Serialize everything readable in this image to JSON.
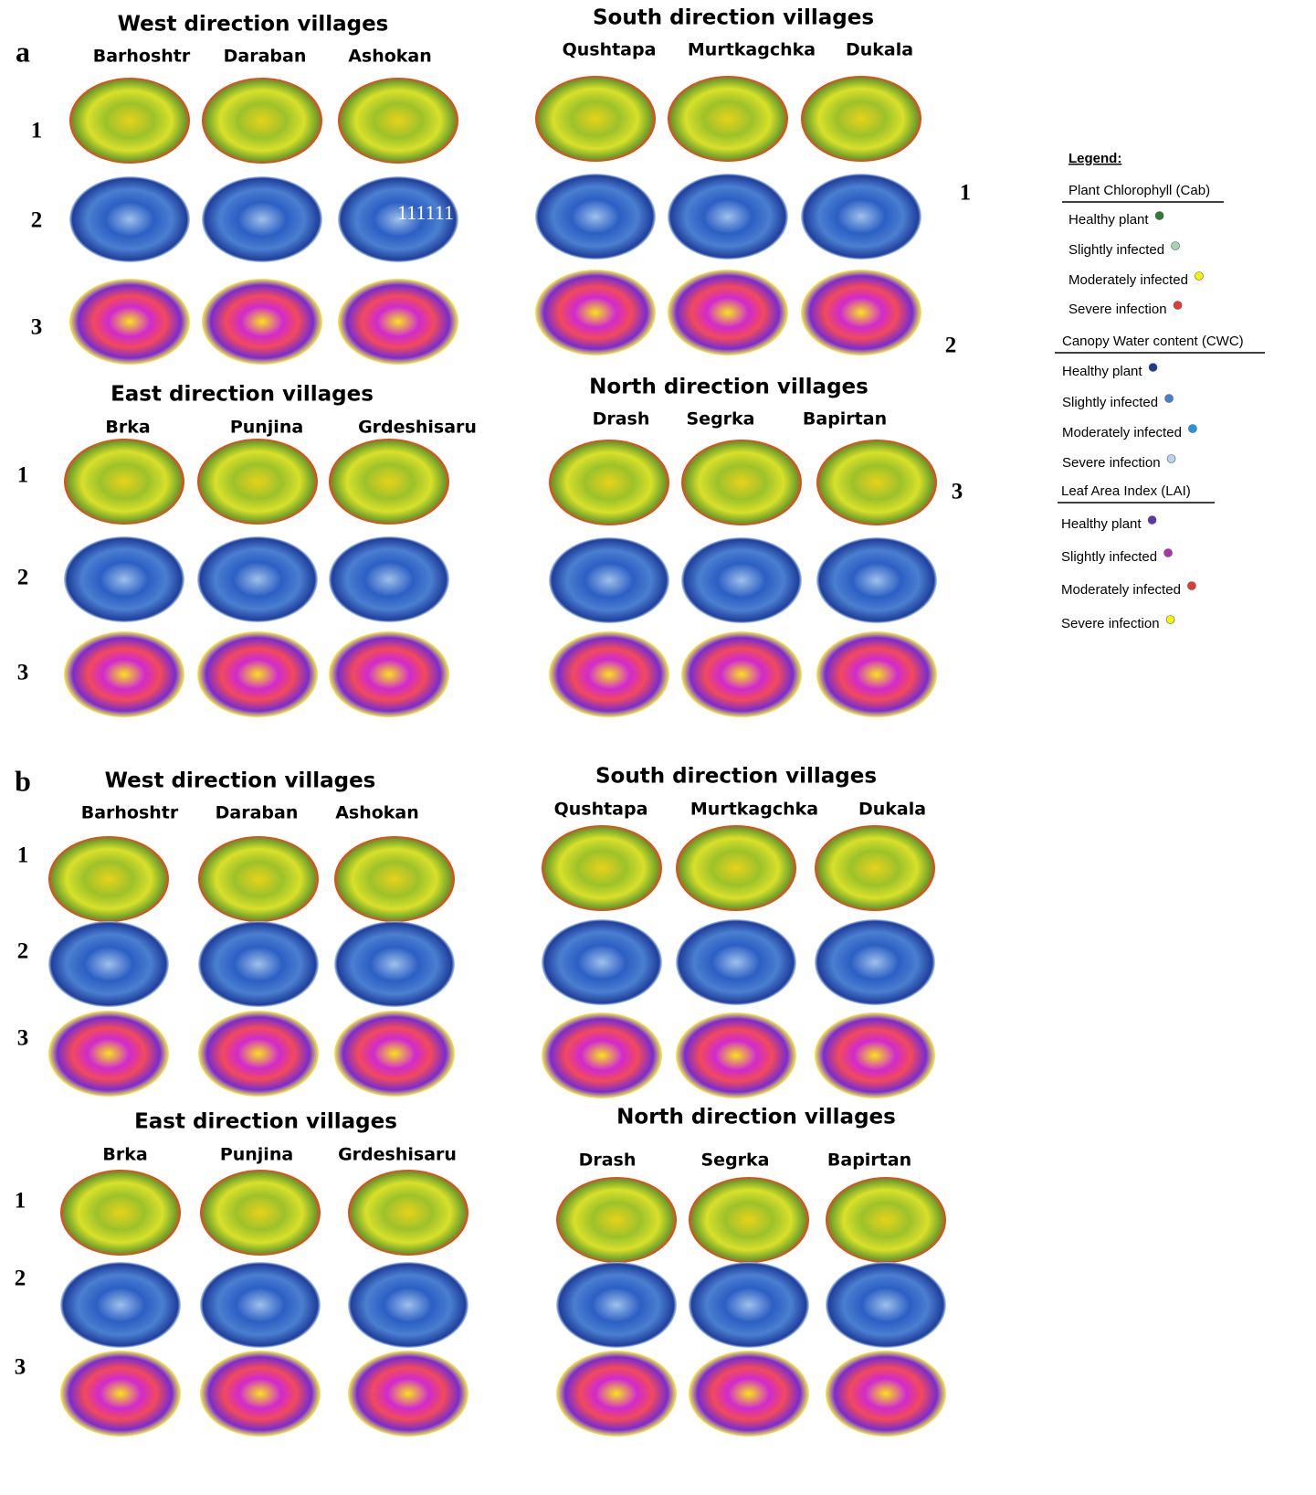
{
  "panels": [
    {
      "label": "a",
      "groups": [
        {
          "title": "West direction villages",
          "villages": [
            "Barhoshtr",
            "Daraban",
            "Ashokan"
          ],
          "row_labels": [
            "1",
            "2",
            "3"
          ]
        },
        {
          "title": "South direction villages",
          "villages": [
            "Qushtapa",
            "Murtkagchka",
            "Dukala"
          ]
        },
        {
          "title": "East direction villages",
          "villages": [
            "Brka",
            "Punjina",
            "Grdeshisaru"
          ],
          "row_labels": [
            "1",
            "2",
            "3"
          ]
        },
        {
          "title": "North direction villages",
          "villages": [
            "Drash",
            "Segrka",
            "Bapirtan"
          ]
        }
      ],
      "side_labels": [
        "1",
        "2",
        "3"
      ],
      "overlay_text": "111111"
    },
    {
      "label": "b",
      "groups": [
        {
          "title": "West direction villages",
          "villages": [
            "Barhoshtr",
            "Daraban",
            "Ashokan"
          ],
          "row_labels": [
            "1",
            "2",
            "3"
          ]
        },
        {
          "title": "South direction villages",
          "villages": [
            "Qushtapa",
            "Murtkagchka",
            "Dukala"
          ]
        },
        {
          "title": "East direction villages",
          "villages": [
            "Brka",
            "Punjina",
            "Grdeshisaru"
          ],
          "row_labels": [
            "1",
            "2",
            "3"
          ]
        },
        {
          "title": "North direction villages",
          "villages": [
            "Drash",
            "Segrka",
            "Bapirtan"
          ]
        }
      ]
    }
  ],
  "legend": {
    "title": "Legend:",
    "sections": [
      {
        "title": "Plant Chlorophyll (Cab)",
        "items": [
          {
            "label": "Healthy plant",
            "color": "#2e7d32"
          },
          {
            "label": "Slightly infected",
            "color": "#a5d6a7"
          },
          {
            "label": "Moderately infected",
            "color": "#f5f500"
          },
          {
            "label": "Severe infection",
            "color": "#e53935"
          }
        ]
      },
      {
        "title": "Canopy Water content (CWC)",
        "items": [
          {
            "label": "Healthy plant",
            "color": "#1a3d8f"
          },
          {
            "label": "Slightly infected",
            "color": "#4a7fd0"
          },
          {
            "label": "Moderately infected",
            "color": "#1e9be0"
          },
          {
            "label": "Severe infection",
            "color": "#b8d4f0"
          }
        ]
      },
      {
        "title": "Leaf Area Index (LAI)",
        "items": [
          {
            "label": "Healthy plant",
            "color": "#5e35b1"
          },
          {
            "label": "Slightly infected",
            "color": "#b030b0"
          },
          {
            "label": "Moderately infected",
            "color": "#e53935"
          },
          {
            "label": "Severe infection",
            "color": "#f5f500"
          }
        ]
      }
    ]
  }
}
